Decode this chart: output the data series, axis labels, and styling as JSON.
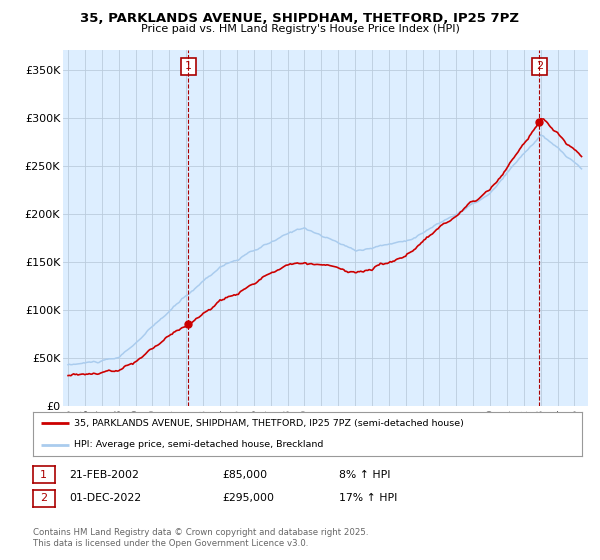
{
  "title": "35, PARKLANDS AVENUE, SHIPDHAM, THETFORD, IP25 7PZ",
  "subtitle": "Price paid vs. HM Land Registry's House Price Index (HPI)",
  "ylabel_ticks": [
    "£0",
    "£50K",
    "£100K",
    "£150K",
    "£200K",
    "£250K",
    "£300K",
    "£350K"
  ],
  "ytick_values": [
    0,
    50000,
    100000,
    150000,
    200000,
    250000,
    300000,
    350000
  ],
  "ylim": [
    0,
    370000
  ],
  "xlim_start": 1994.7,
  "xlim_end": 2025.8,
  "purchase1": {
    "date": 2002.13,
    "price": 85000,
    "label": "1"
  },
  "purchase2": {
    "date": 2022.92,
    "price": 295000,
    "label": "2"
  },
  "legend_line1": "35, PARKLANDS AVENUE, SHIPDHAM, THETFORD, IP25 7PZ (semi-detached house)",
  "legend_line2": "HPI: Average price, semi-detached house, Breckland",
  "table_row1": [
    "1",
    "21-FEB-2002",
    "£85,000",
    "8% ↑ HPI"
  ],
  "table_row2": [
    "2",
    "01-DEC-2022",
    "£295,000",
    "17% ↑ HPI"
  ],
  "footer": "Contains HM Land Registry data © Crown copyright and database right 2025.\nThis data is licensed under the Open Government Licence v3.0.",
  "line_color_red": "#cc0000",
  "line_color_blue": "#aaccee",
  "chart_bg_color": "#ddeeff",
  "background_color": "#ffffff",
  "grid_color": "#bbccdd",
  "annotation_box_color": "#aa0000"
}
